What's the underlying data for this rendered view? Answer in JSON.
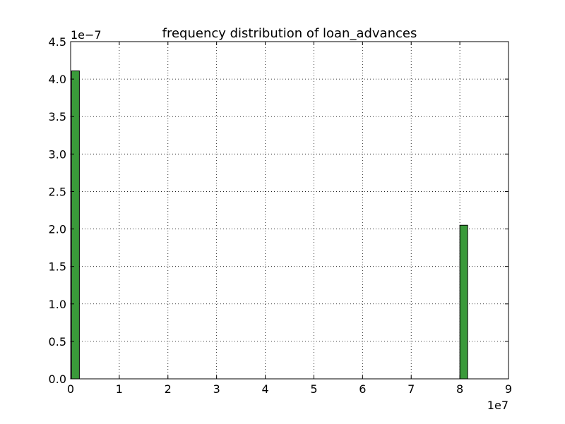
{
  "chart_data": {
    "type": "bar",
    "title": "frequency distribution of loan_advances",
    "xlabel": "",
    "ylabel": "",
    "x_offset_label": "1e7",
    "y_offset_label": "1e−7",
    "xlim": [
      0,
      9
    ],
    "ylim": [
      0,
      4.5
    ],
    "x_ticks": [
      "0",
      "1",
      "2",
      "3",
      "4",
      "5",
      "6",
      "7",
      "8",
      "9"
    ],
    "y_ticks": [
      "0.0",
      "0.5",
      "1.0",
      "1.5",
      "2.0",
      "2.5",
      "3.0",
      "3.5",
      "4.0",
      "4.5"
    ],
    "grid": true,
    "bins": [
      {
        "x_start": 0.02,
        "x_end": 0.18,
        "value": 4.11
      },
      {
        "x_start": 8.0,
        "x_end": 8.16,
        "value": 2.05
      }
    ],
    "bar_color": "#3a9a3a",
    "edge_color": "#000000"
  }
}
